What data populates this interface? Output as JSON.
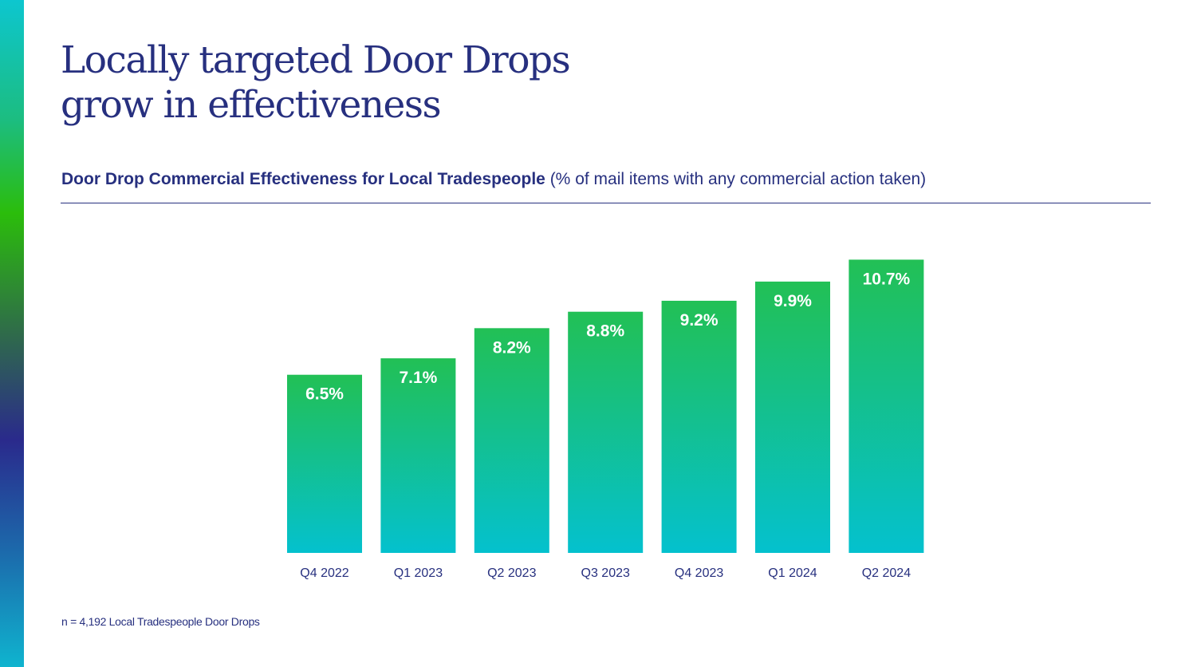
{
  "title": {
    "line1": "Locally targeted Door Drops",
    "line2": "grow in effectiveness"
  },
  "subtitle": {
    "bold": "Door Drop Commercial Effectiveness for Local Tradespeople",
    "normal": "(% of mail items with any commercial action taken)"
  },
  "footnote": "n = 4,192 Local Tradespeople Door Drops",
  "colors": {
    "title": "#27307f",
    "bar_top": "#22c055",
    "bar_bottom": "#04c1ce",
    "bar_label": "#ffffff"
  },
  "chart_data": {
    "type": "bar",
    "title": "Door Drop Commercial Effectiveness for Local Tradespeople",
    "ylabel": "% of mail items with any commercial action taken",
    "categories": [
      "Q4 2022",
      "Q1 2023",
      "Q2 2023",
      "Q3 2023",
      "Q4 2023",
      "Q1 2024",
      "Q2 2024"
    ],
    "values": [
      6.5,
      7.1,
      8.2,
      8.8,
      9.2,
      9.9,
      10.7
    ],
    "value_labels": [
      "6.5%",
      "7.1%",
      "8.2%",
      "8.8%",
      "9.2%",
      "9.9%",
      "10.7%"
    ],
    "ylim": [
      0,
      13.1
    ],
    "grid": false,
    "legend": "none"
  }
}
